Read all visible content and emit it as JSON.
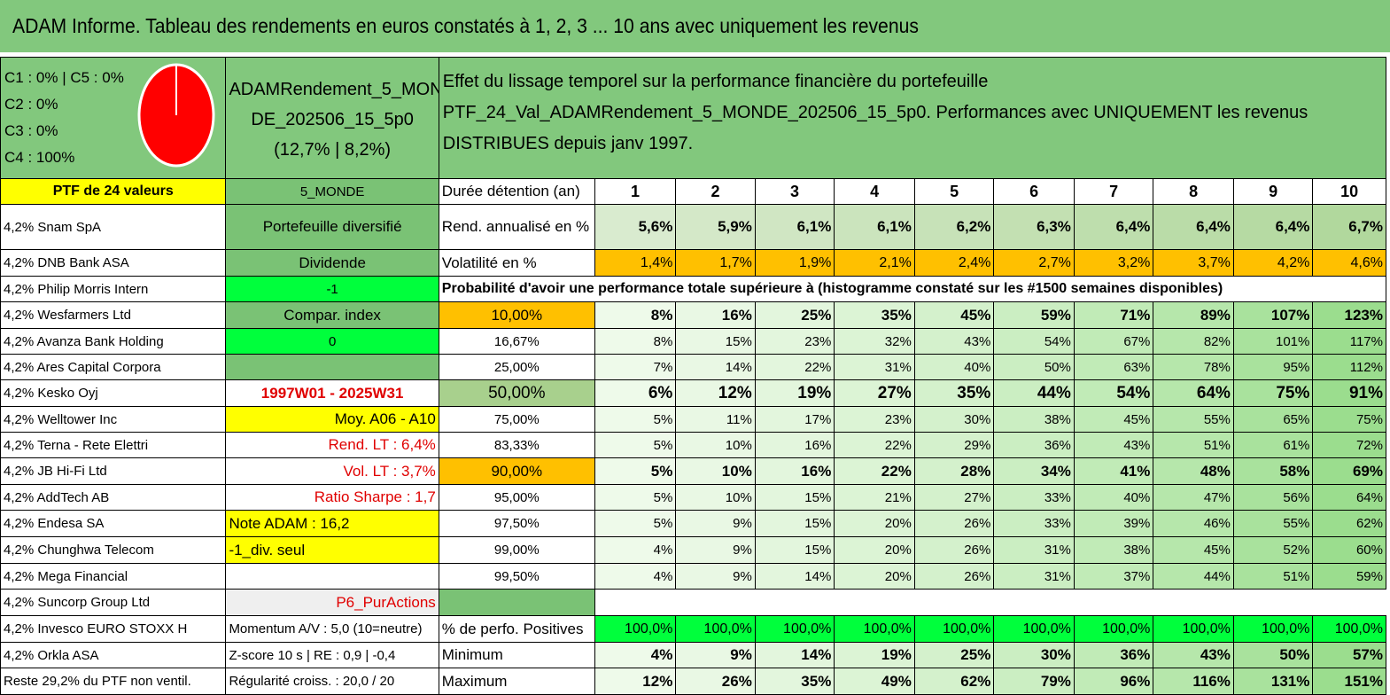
{
  "header": {
    "title": "ADAM Informe. Tableau des rendements en euros constatés à 1, 2, 3 ... 10 ans avec uniquement les revenus",
    "bg_color": "#82c87d"
  },
  "allocation": {
    "lines": [
      "C1 : 0% | C5 : 0%",
      "C2 : 0%",
      "C3 : 0%",
      "C4 : 100%"
    ],
    "pie_color": "#ff0000"
  },
  "portfolio": {
    "name_line1": "ADAMRendement_5_MON",
    "name_line2": "DE_202506_15_5p0",
    "name_line3": "(12,7% | 8,2%)"
  },
  "effect": {
    "line1": "Effet du lissage temporel sur la performance financière du portefeuille",
    "line2": "PTF_24_Val_ADAMRendement_5_MONDE_202506_15_5p0. Performances avec UNIQUEMENT les revenus DISTRIBUES depuis janv 1997."
  },
  "holdings_header": "PTF de 24 valeurs",
  "holdings": [
    "4,2% Snam SpA",
    "4,2% DNB Bank ASA",
    "4,2% Philip Morris Intern",
    "4,2% Wesfarmers Ltd",
    "4,2% Avanza Bank Holding",
    "4,2% Ares Capital Corpora",
    "4,2% Kesko Oyj",
    "4,2% Welltower Inc",
    "4,2% Terna - Rete Elettri",
    "4,2% JB Hi-Fi Ltd",
    "4,2% AddTech AB",
    "4,2% Endesa SA",
    "4,2% Chunghwa Telecom",
    "4,2% Mega Financial",
    "4,2% Suncorp Group Ltd",
    "4,2% Invesco EURO STOXX H",
    "4,2% Orkla ASA",
    "Reste 29,2% du PTF non ventil."
  ],
  "info": {
    "region": "5_MONDE",
    "type": "Portefeuille diversifié",
    "category": "Dividende",
    "value_minus1": "-1",
    "compar": "Compar. index",
    "value_zero": "0",
    "period": "1997W01 - 2025W31",
    "moy": "Moy. A06 - A10",
    "rend_lt": "Rend. LT : 6,4%",
    "vol_lt": "Vol. LT : 3,7%",
    "sharpe": "Ratio Sharpe : 1,7",
    "note": "Note ADAM : 16,2",
    "div_seul": "-1_div. seul",
    "p6": "P6_PurActions",
    "momentum": "Momentum A/V : 5,0 (10=neutre)",
    "zscore": "Z-score 10 s | RE : 0,9 | -0,4",
    "regularite": "Régularité croiss. : 20,0 / 20"
  },
  "stats": {
    "duration_label": "Durée détention (an)",
    "years": [
      "1",
      "2",
      "3",
      "4",
      "5",
      "6",
      "7",
      "8",
      "9",
      "10"
    ],
    "rend_label": "Rend. annualisé en %",
    "rend": [
      "5,6%",
      "5,9%",
      "6,1%",
      "6,1%",
      "6,2%",
      "6,3%",
      "6,4%",
      "6,4%",
      "6,4%",
      "6,7%"
    ],
    "vol_label": "Volatilité en %",
    "vol": [
      "1,4%",
      "1,7%",
      "1,9%",
      "2,1%",
      "2,4%",
      "2,7%",
      "3,2%",
      "3,7%",
      "4,2%",
      "4,6%"
    ],
    "prob_title": "Probabilité d'avoir une performance totale supérieure à (histogramme constaté sur les #1500 semaines disponibles)",
    "histogram": [
      {
        "p": "10,00%",
        "v": [
          "8%",
          "16%",
          "25%",
          "35%",
          "45%",
          "59%",
          "71%",
          "89%",
          "107%",
          "123%"
        ]
      },
      {
        "p": "16,67%",
        "v": [
          "8%",
          "15%",
          "23%",
          "32%",
          "43%",
          "54%",
          "67%",
          "82%",
          "101%",
          "117%"
        ]
      },
      {
        "p": "25,00%",
        "v": [
          "7%",
          "14%",
          "22%",
          "31%",
          "40%",
          "50%",
          "63%",
          "78%",
          "95%",
          "112%"
        ]
      },
      {
        "p": "50,00%",
        "v": [
          "6%",
          "12%",
          "19%",
          "27%",
          "35%",
          "44%",
          "54%",
          "64%",
          "75%",
          "91%"
        ]
      },
      {
        "p": "75,00%",
        "v": [
          "5%",
          "11%",
          "17%",
          "23%",
          "30%",
          "38%",
          "45%",
          "55%",
          "65%",
          "75%"
        ]
      },
      {
        "p": "83,33%",
        "v": [
          "5%",
          "10%",
          "16%",
          "22%",
          "29%",
          "36%",
          "43%",
          "51%",
          "61%",
          "72%"
        ]
      },
      {
        "p": "90,00%",
        "v": [
          "5%",
          "10%",
          "16%",
          "22%",
          "28%",
          "34%",
          "41%",
          "48%",
          "58%",
          "69%"
        ]
      },
      {
        "p": "95,00%",
        "v": [
          "5%",
          "10%",
          "15%",
          "21%",
          "27%",
          "33%",
          "40%",
          "47%",
          "56%",
          "64%"
        ]
      },
      {
        "p": "97,50%",
        "v": [
          "5%",
          "9%",
          "15%",
          "20%",
          "26%",
          "33%",
          "39%",
          "46%",
          "55%",
          "62%"
        ]
      },
      {
        "p": "99,00%",
        "v": [
          "4%",
          "9%",
          "15%",
          "20%",
          "26%",
          "31%",
          "38%",
          "45%",
          "52%",
          "60%"
        ]
      },
      {
        "p": "99,50%",
        "v": [
          "4%",
          "9%",
          "14%",
          "20%",
          "26%",
          "31%",
          "37%",
          "44%",
          "51%",
          "59%"
        ]
      }
    ],
    "pos_label": "% de perfo. Positives",
    "pos": [
      "100,0%",
      "100,0%",
      "100,0%",
      "100,0%",
      "100,0%",
      "100,0%",
      "100,0%",
      "100,0%",
      "100,0%",
      "100,0%"
    ],
    "min_label": "Minimum",
    "min": [
      "4%",
      "9%",
      "14%",
      "19%",
      "25%",
      "30%",
      "36%",
      "43%",
      "50%",
      "57%"
    ],
    "max_label": "Maximum",
    "max": [
      "12%",
      "26%",
      "35%",
      "49%",
      "62%",
      "79%",
      "96%",
      "116%",
      "131%",
      "151%"
    ]
  },
  "colors": {
    "green_header": "#82c87d",
    "highlight_yellow": "#ffff00",
    "bright_green": "#00ff3c",
    "orange": "#ffc000"
  }
}
